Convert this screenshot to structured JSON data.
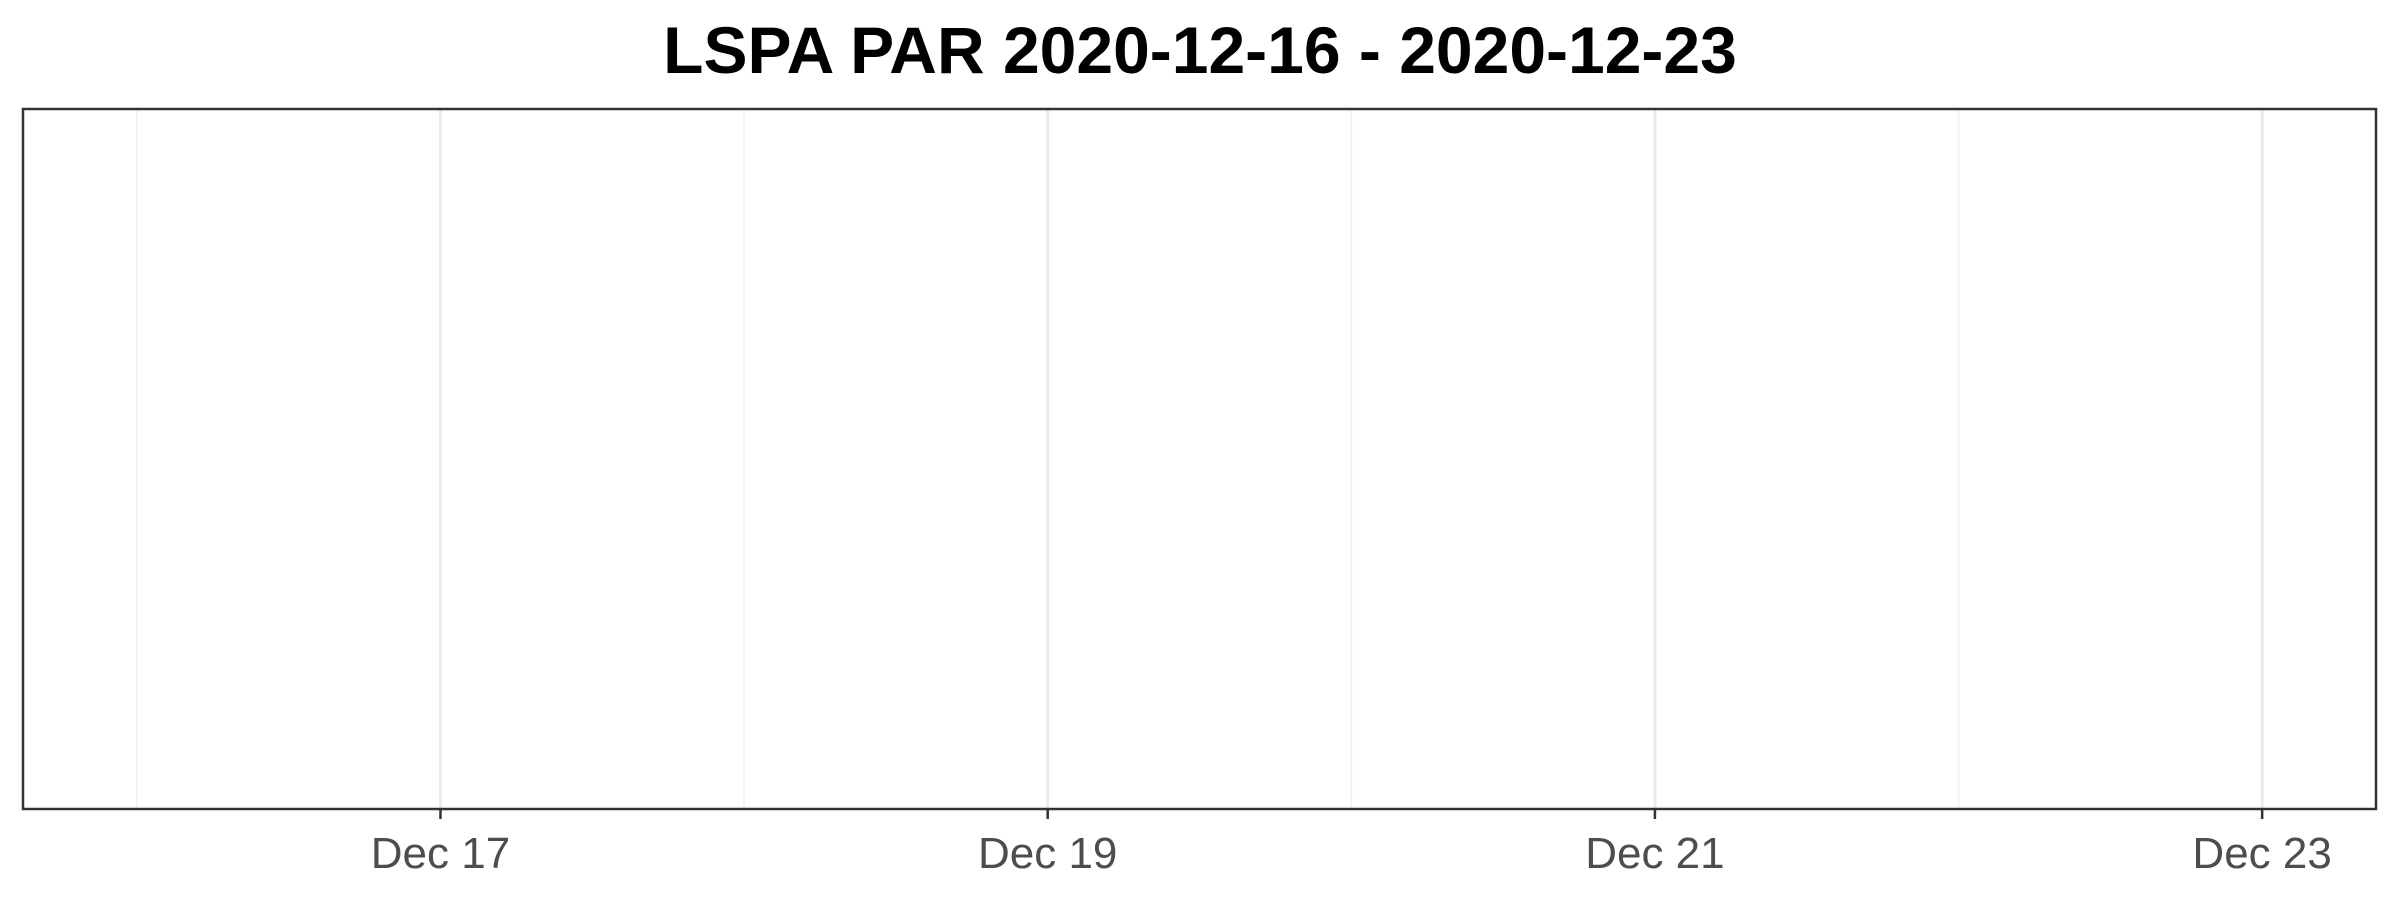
{
  "chart_data": {
    "type": "line",
    "title": "LSPA PAR 2020-12-16 - 2020-12-23",
    "xlabel": "",
    "ylabel": "",
    "x_axis": {
      "scale": "date",
      "range": [
        "2020-12-15T15:00",
        "2020-12-23T09:00"
      ],
      "major_ticks": [
        "2020-12-17",
        "2020-12-19",
        "2020-12-21",
        "2020-12-23"
      ],
      "minor_ticks": [
        "2020-12-16",
        "2020-12-18",
        "2020-12-20",
        "2020-12-22"
      ],
      "tick_labels": [
        "Dec 17",
        "Dec 19",
        "Dec 21",
        "Dec 23"
      ]
    },
    "y_axis": {
      "tick_labels": []
    },
    "series": [],
    "grid": "vertical",
    "legend": "none",
    "colors": {
      "panel_border": "#333333",
      "grid_major": "#ebebeb",
      "grid_minor": "#f3f3f3",
      "tick_label": "#4d4d4d",
      "title": "#000000"
    }
  }
}
